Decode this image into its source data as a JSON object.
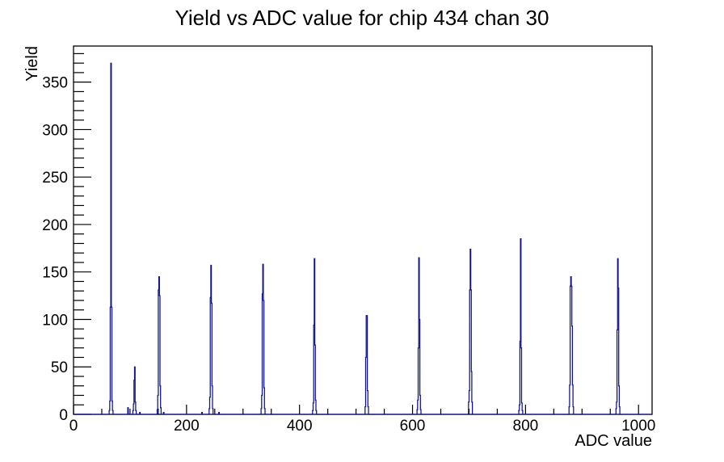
{
  "chart_data": {
    "type": "bar",
    "title": "Yield vs ADC value for chip 434 chan 30",
    "xlabel": "ADC value",
    "ylabel": "Yield",
    "xlim": [
      0,
      1024
    ],
    "ylim": [
      0,
      388
    ],
    "x_major_ticks": [
      0,
      200,
      400,
      600,
      800,
      1000
    ],
    "x_minor_tick_step": 50,
    "y_major_ticks": [
      0,
      50,
      100,
      150,
      200,
      250,
      300,
      350
    ],
    "y_minor_tick_step": 10,
    "grid": false,
    "legend": false,
    "background_color": "#ffffff",
    "axis_color": "#000000",
    "line_color": "#10108c",
    "bin_width_adc": 1,
    "bins": [
      [
        63,
        4
      ],
      [
        64,
        14
      ],
      [
        65,
        113
      ],
      [
        66,
        370
      ],
      [
        67,
        113
      ],
      [
        68,
        14
      ],
      [
        69,
        4
      ],
      [
        96,
        7
      ],
      [
        105,
        4
      ],
      [
        106,
        11
      ],
      [
        107,
        36
      ],
      [
        108,
        50
      ],
      [
        109,
        13
      ],
      [
        110,
        4
      ],
      [
        117,
        2
      ],
      [
        148,
        5
      ],
      [
        149,
        20
      ],
      [
        150,
        131
      ],
      [
        151,
        145
      ],
      [
        152,
        125
      ],
      [
        153,
        30
      ],
      [
        154,
        7
      ],
      [
        159,
        2
      ],
      [
        227,
        2
      ],
      [
        240,
        6
      ],
      [
        241,
        18
      ],
      [
        242,
        123
      ],
      [
        243,
        157
      ],
      [
        244,
        117
      ],
      [
        245,
        30
      ],
      [
        246,
        6
      ],
      [
        257,
        2
      ],
      [
        332,
        6
      ],
      [
        333,
        20
      ],
      [
        334,
        127
      ],
      [
        335,
        158
      ],
      [
        336,
        120
      ],
      [
        337,
        28
      ],
      [
        338,
        6
      ],
      [
        423,
        4
      ],
      [
        424,
        12
      ],
      [
        425,
        94
      ],
      [
        426,
        164
      ],
      [
        427,
        73
      ],
      [
        428,
        15
      ],
      [
        429,
        4
      ],
      [
        516,
        8
      ],
      [
        517,
        60
      ],
      [
        518,
        104
      ],
      [
        519,
        104
      ],
      [
        520,
        25
      ],
      [
        521,
        8
      ],
      [
        608,
        5
      ],
      [
        609,
        15
      ],
      [
        610,
        70
      ],
      [
        611,
        165
      ],
      [
        612,
        100
      ],
      [
        613,
        20
      ],
      [
        614,
        5
      ],
      [
        699,
        13
      ],
      [
        700,
        25
      ],
      [
        701,
        131
      ],
      [
        702,
        174
      ],
      [
        703,
        131
      ],
      [
        704,
        45
      ],
      [
        705,
        13
      ],
      [
        788,
        4
      ],
      [
        789,
        10
      ],
      [
        790,
        77
      ],
      [
        791,
        185
      ],
      [
        792,
        70
      ],
      [
        793,
        12
      ],
      [
        794,
        4
      ],
      [
        877,
        8
      ],
      [
        878,
        31
      ],
      [
        879,
        135
      ],
      [
        880,
        145
      ],
      [
        881,
        135
      ],
      [
        882,
        93
      ],
      [
        883,
        31
      ],
      [
        884,
        8
      ],
      [
        960,
        6
      ],
      [
        961,
        13
      ],
      [
        962,
        89
      ],
      [
        963,
        164
      ],
      [
        964,
        133
      ],
      [
        965,
        30
      ],
      [
        966,
        8
      ]
    ]
  }
}
